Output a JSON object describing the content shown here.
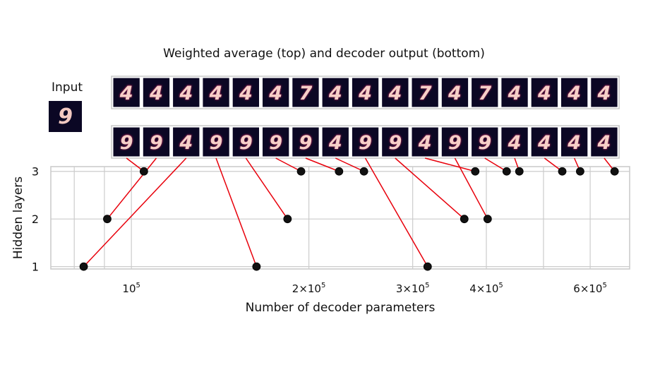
{
  "figure": {
    "title": "Weighted average (top) and decoder output (bottom)",
    "input_label": "Input",
    "input_digit": "9"
  },
  "chart_data": {
    "type": "scatter",
    "xscale": "log",
    "xlabel": "Number of decoder parameters",
    "ylabel": "Hidden layers",
    "xlim": [
      73000,
      700000
    ],
    "ylim": [
      0.95,
      3.1
    ],
    "x_ticks": [
      {
        "value": 100000,
        "mantissa": "",
        "exp": "5"
      },
      {
        "value": 200000,
        "mantissa": "2",
        "exp": "5"
      },
      {
        "value": 300000,
        "mantissa": "3",
        "exp": "5"
      },
      {
        "value": 400000,
        "mantissa": "4",
        "exp": "5"
      },
      {
        "value": 600000,
        "mantissa": "6",
        "exp": "5"
      }
    ],
    "y_ticks": [
      "1",
      "2",
      "3"
    ],
    "grid": true,
    "colors": {
      "point": "#111111",
      "connector": "#e8000b",
      "grid": "#cccccc",
      "thumb_bg": "#0b0724",
      "digit": "#f6d0c8",
      "digit_glow": "#c2265f"
    },
    "points": [
      {
        "x": 83000,
        "y": 1
      },
      {
        "x": 91000,
        "y": 2
      },
      {
        "x": 105000,
        "y": 3
      },
      {
        "x": 163000,
        "y": 1
      },
      {
        "x": 184000,
        "y": 2
      },
      {
        "x": 194000,
        "y": 3
      },
      {
        "x": 225000,
        "y": 3
      },
      {
        "x": 248000,
        "y": 3
      },
      {
        "x": 318000,
        "y": 1
      },
      {
        "x": 367000,
        "y": 2
      },
      {
        "x": 383000,
        "y": 3
      },
      {
        "x": 402000,
        "y": 2
      },
      {
        "x": 433000,
        "y": 3
      },
      {
        "x": 455000,
        "y": 3
      },
      {
        "x": 538000,
        "y": 3
      },
      {
        "x": 577000,
        "y": 3
      },
      {
        "x": 660000,
        "y": 3
      }
    ],
    "weighted_average_digits": [
      "4",
      "4",
      "4",
      "4",
      "4",
      "4",
      "7",
      "4",
      "4",
      "4",
      "7",
      "4",
      "7",
      "4",
      "4",
      "4",
      "4"
    ],
    "decoder_output_digits": [
      "9",
      "9",
      "4",
      "9",
      "9",
      "9",
      "9",
      "4",
      "9",
      "9",
      "4",
      "9",
      "9",
      "4",
      "4",
      "4",
      "4"
    ],
    "connections_bottom_thumb_to_point": [
      2,
      1,
      0,
      3,
      4,
      5,
      6,
      7,
      8,
      9,
      10,
      11,
      12,
      13,
      14,
      15,
      16
    ]
  }
}
